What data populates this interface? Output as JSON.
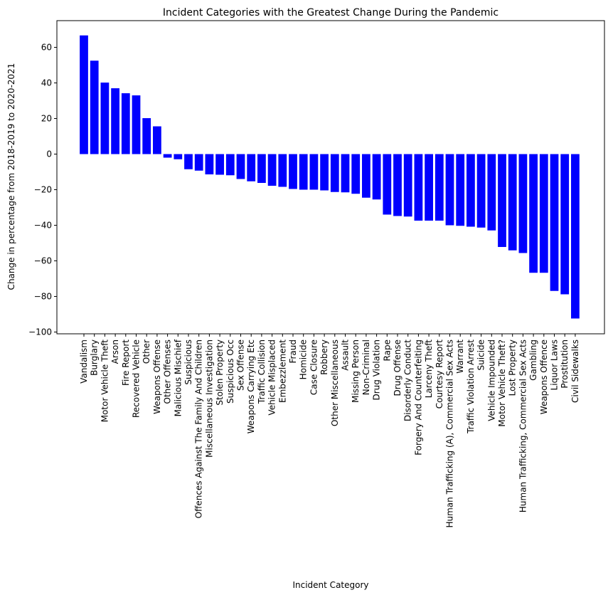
{
  "chart_data": {
    "type": "bar",
    "title": "Incident Categories with the Greatest Change During the Pandemic",
    "xlabel": "Incident Category",
    "ylabel": "Change in percentage from 2018-2019 to 2020-2021",
    "ylim": [
      -101,
      75
    ],
    "yticks": [
      -100,
      -80,
      -60,
      -40,
      -20,
      0,
      20,
      40,
      60
    ],
    "grid": false,
    "bar_color": "#0000ff",
    "categories": [
      "Vandalism",
      "Burglary",
      "Motor Vehicle Theft",
      "Arson",
      "Fire Report",
      "Recovered Vehicle",
      "Other",
      "Weapons Offense",
      "Other Offenses",
      "Malicious Mischief",
      "Suspicious",
      "Offences Against The Family And Children",
      "Miscellaneous Investigation",
      "Stolen Property",
      "Suspicious Occ",
      "Sex Offense",
      "Weapons Carrying Etc",
      "Traffic Collision",
      "Vehicle Misplaced",
      "Embezzlement",
      "Fraud",
      "Homicide",
      "Case Closure",
      "Robbery",
      "Other Miscellaneous",
      "Assault",
      "Missing Person",
      "Non-Criminal",
      "Drug Violation",
      "Rape",
      "Drug Offense",
      "Disorderly Conduct",
      "Forgery And Counterfeiting",
      "Larceny Theft",
      "Courtesy Report",
      "Human Trafficking (A), Commercial Sex Acts",
      "Warrant",
      "Traffic Violation Arrest",
      "Suicide",
      "Vehicle Impounded",
      "Motor Vehicle Theft?",
      "Lost Property",
      "Human Trafficking, Commercial Sex Acts",
      "Gambling",
      "Weapons Offence",
      "Liquor Laws",
      "Prostitution",
      "Civil Sidewalks"
    ],
    "values": [
      66.7,
      52.5,
      40.2,
      37.0,
      34.2,
      33.0,
      20.2,
      15.6,
      -2.0,
      -2.9,
      -8.5,
      -9.3,
      -11.4,
      -11.6,
      -11.9,
      -14.0,
      -15.3,
      -16.2,
      -17.8,
      -18.4,
      -19.6,
      -20.0,
      -20.0,
      -20.4,
      -21.3,
      -21.5,
      -22.3,
      -24.5,
      -25.5,
      -34.0,
      -34.8,
      -35.1,
      -37.4,
      -37.4,
      -37.4,
      -40.0,
      -40.3,
      -40.8,
      -41.3,
      -42.9,
      -52.2,
      -54.1,
      -55.6,
      -66.7,
      -66.7,
      -76.9,
      -78.8,
      -92.4
    ]
  }
}
